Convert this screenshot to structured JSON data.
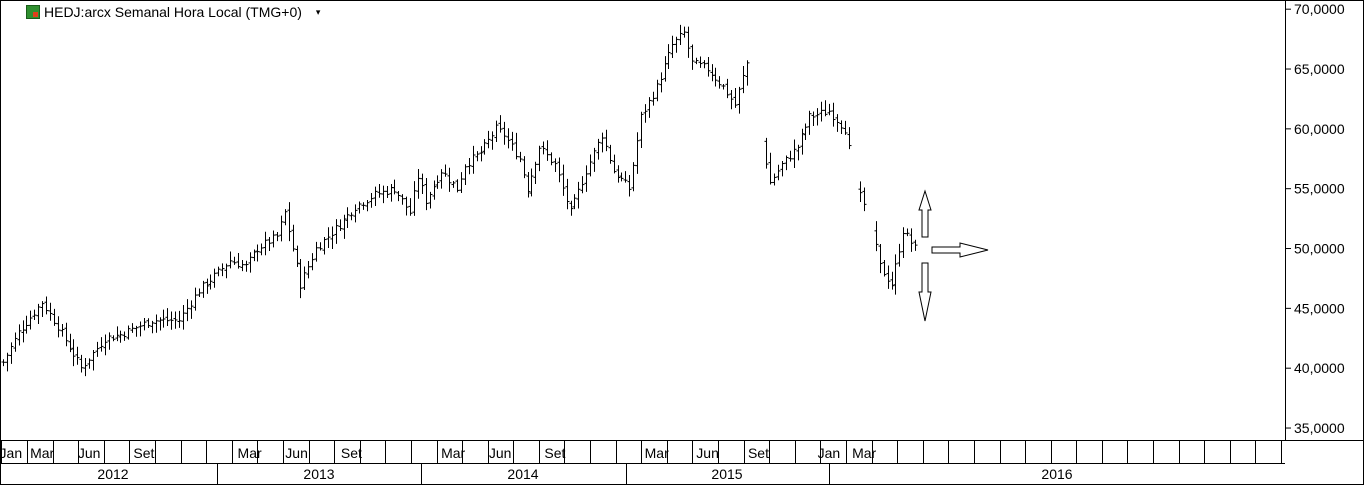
{
  "header": {
    "title": "HEDJ:arcx Semanal Hora Local (TMG+0)",
    "dropdown_icon": "chevron-down-icon",
    "logo_icon": "instrument-logo-icon"
  },
  "chart_data": {
    "type": "ohlc-bar",
    "ylim": [
      34000,
      70600
    ],
    "y_ticks": [
      "70,0000",
      "65,0000",
      "60,0000",
      "55,0000",
      "50,0000",
      "45,0000",
      "40,0000",
      "35,0000"
    ],
    "month_labels": [
      {
        "text": "Jan",
        "i": 2
      },
      {
        "text": "Mar",
        "i": 10
      },
      {
        "text": "Jun",
        "i": 22
      },
      {
        "text": "Set",
        "i": 36
      },
      {
        "text": "Mar",
        "i": 63
      },
      {
        "text": "Jun",
        "i": 75
      },
      {
        "text": "Set",
        "i": 89
      },
      {
        "text": "Mar",
        "i": 115
      },
      {
        "text": "Jun",
        "i": 127
      },
      {
        "text": "Set",
        "i": 141
      },
      {
        "text": "Mar",
        "i": 167
      },
      {
        "text": "Jun",
        "i": 180
      },
      {
        "text": "Set",
        "i": 193
      },
      {
        "text": "Jan",
        "i": 211
      },
      {
        "text": "Mar",
        "i": 220
      }
    ],
    "year_labels": [
      "2012",
      "2013",
      "2014",
      "2015",
      "2016"
    ],
    "anchors": [
      [
        0,
        40500
      ],
      [
        4,
        43000
      ],
      [
        10,
        45500
      ],
      [
        14,
        43500
      ],
      [
        20,
        40000
      ],
      [
        26,
        42500
      ],
      [
        30,
        42800
      ],
      [
        38,
        44000
      ],
      [
        45,
        44000
      ],
      [
        50,
        46500
      ],
      [
        55,
        48000
      ],
      [
        58,
        49000
      ],
      [
        62,
        48500
      ],
      [
        65,
        50000
      ],
      [
        70,
        51000
      ],
      [
        72,
        53000
      ],
      [
        76,
        47000
      ],
      [
        80,
        50000
      ],
      [
        86,
        52000
      ],
      [
        90,
        53500
      ],
      [
        95,
        54500
      ],
      [
        100,
        55000
      ],
      [
        104,
        53000
      ],
      [
        106,
        56000
      ],
      [
        108,
        54000
      ],
      [
        112,
        56500
      ],
      [
        116,
        55000
      ],
      [
        118,
        57000
      ],
      [
        122,
        58000
      ],
      [
        126,
        60000
      ],
      [
        128,
        59500
      ],
      [
        132,
        57500
      ],
      [
        134,
        55000
      ],
      [
        137,
        58500
      ],
      [
        141,
        57000
      ],
      [
        145,
        53000
      ],
      [
        149,
        56500
      ],
      [
        153,
        59500
      ],
      [
        156,
        56500
      ],
      [
        160,
        55000
      ],
      [
        163,
        61000
      ],
      [
        167,
        63500
      ],
      [
        171,
        67000
      ],
      [
        174,
        68000
      ],
      [
        176,
        65500
      ],
      [
        180,
        65000
      ],
      [
        184,
        63500
      ],
      [
        187,
        62000
      ],
      [
        190,
        65500
      ],
      [
        194,
        59000
      ],
      [
        196,
        55500
      ],
      [
        199,
        57000
      ],
      [
        203,
        58500
      ],
      [
        206,
        61000
      ],
      [
        211,
        61500
      ],
      [
        215,
        60000
      ],
      [
        218,
        55000
      ],
      [
        221,
        53000
      ],
      [
        224,
        48500
      ],
      [
        227,
        47000
      ],
      [
        230,
        51500
      ],
      [
        233,
        50000
      ]
    ],
    "gaps": [
      [
        190,
        195
      ],
      [
        216,
        219
      ],
      [
        220,
        223
      ]
    ],
    "x_index_range": [
      0,
      327
    ],
    "annotation": "three outline arrows (up, right, down) to the right of the last bar"
  }
}
